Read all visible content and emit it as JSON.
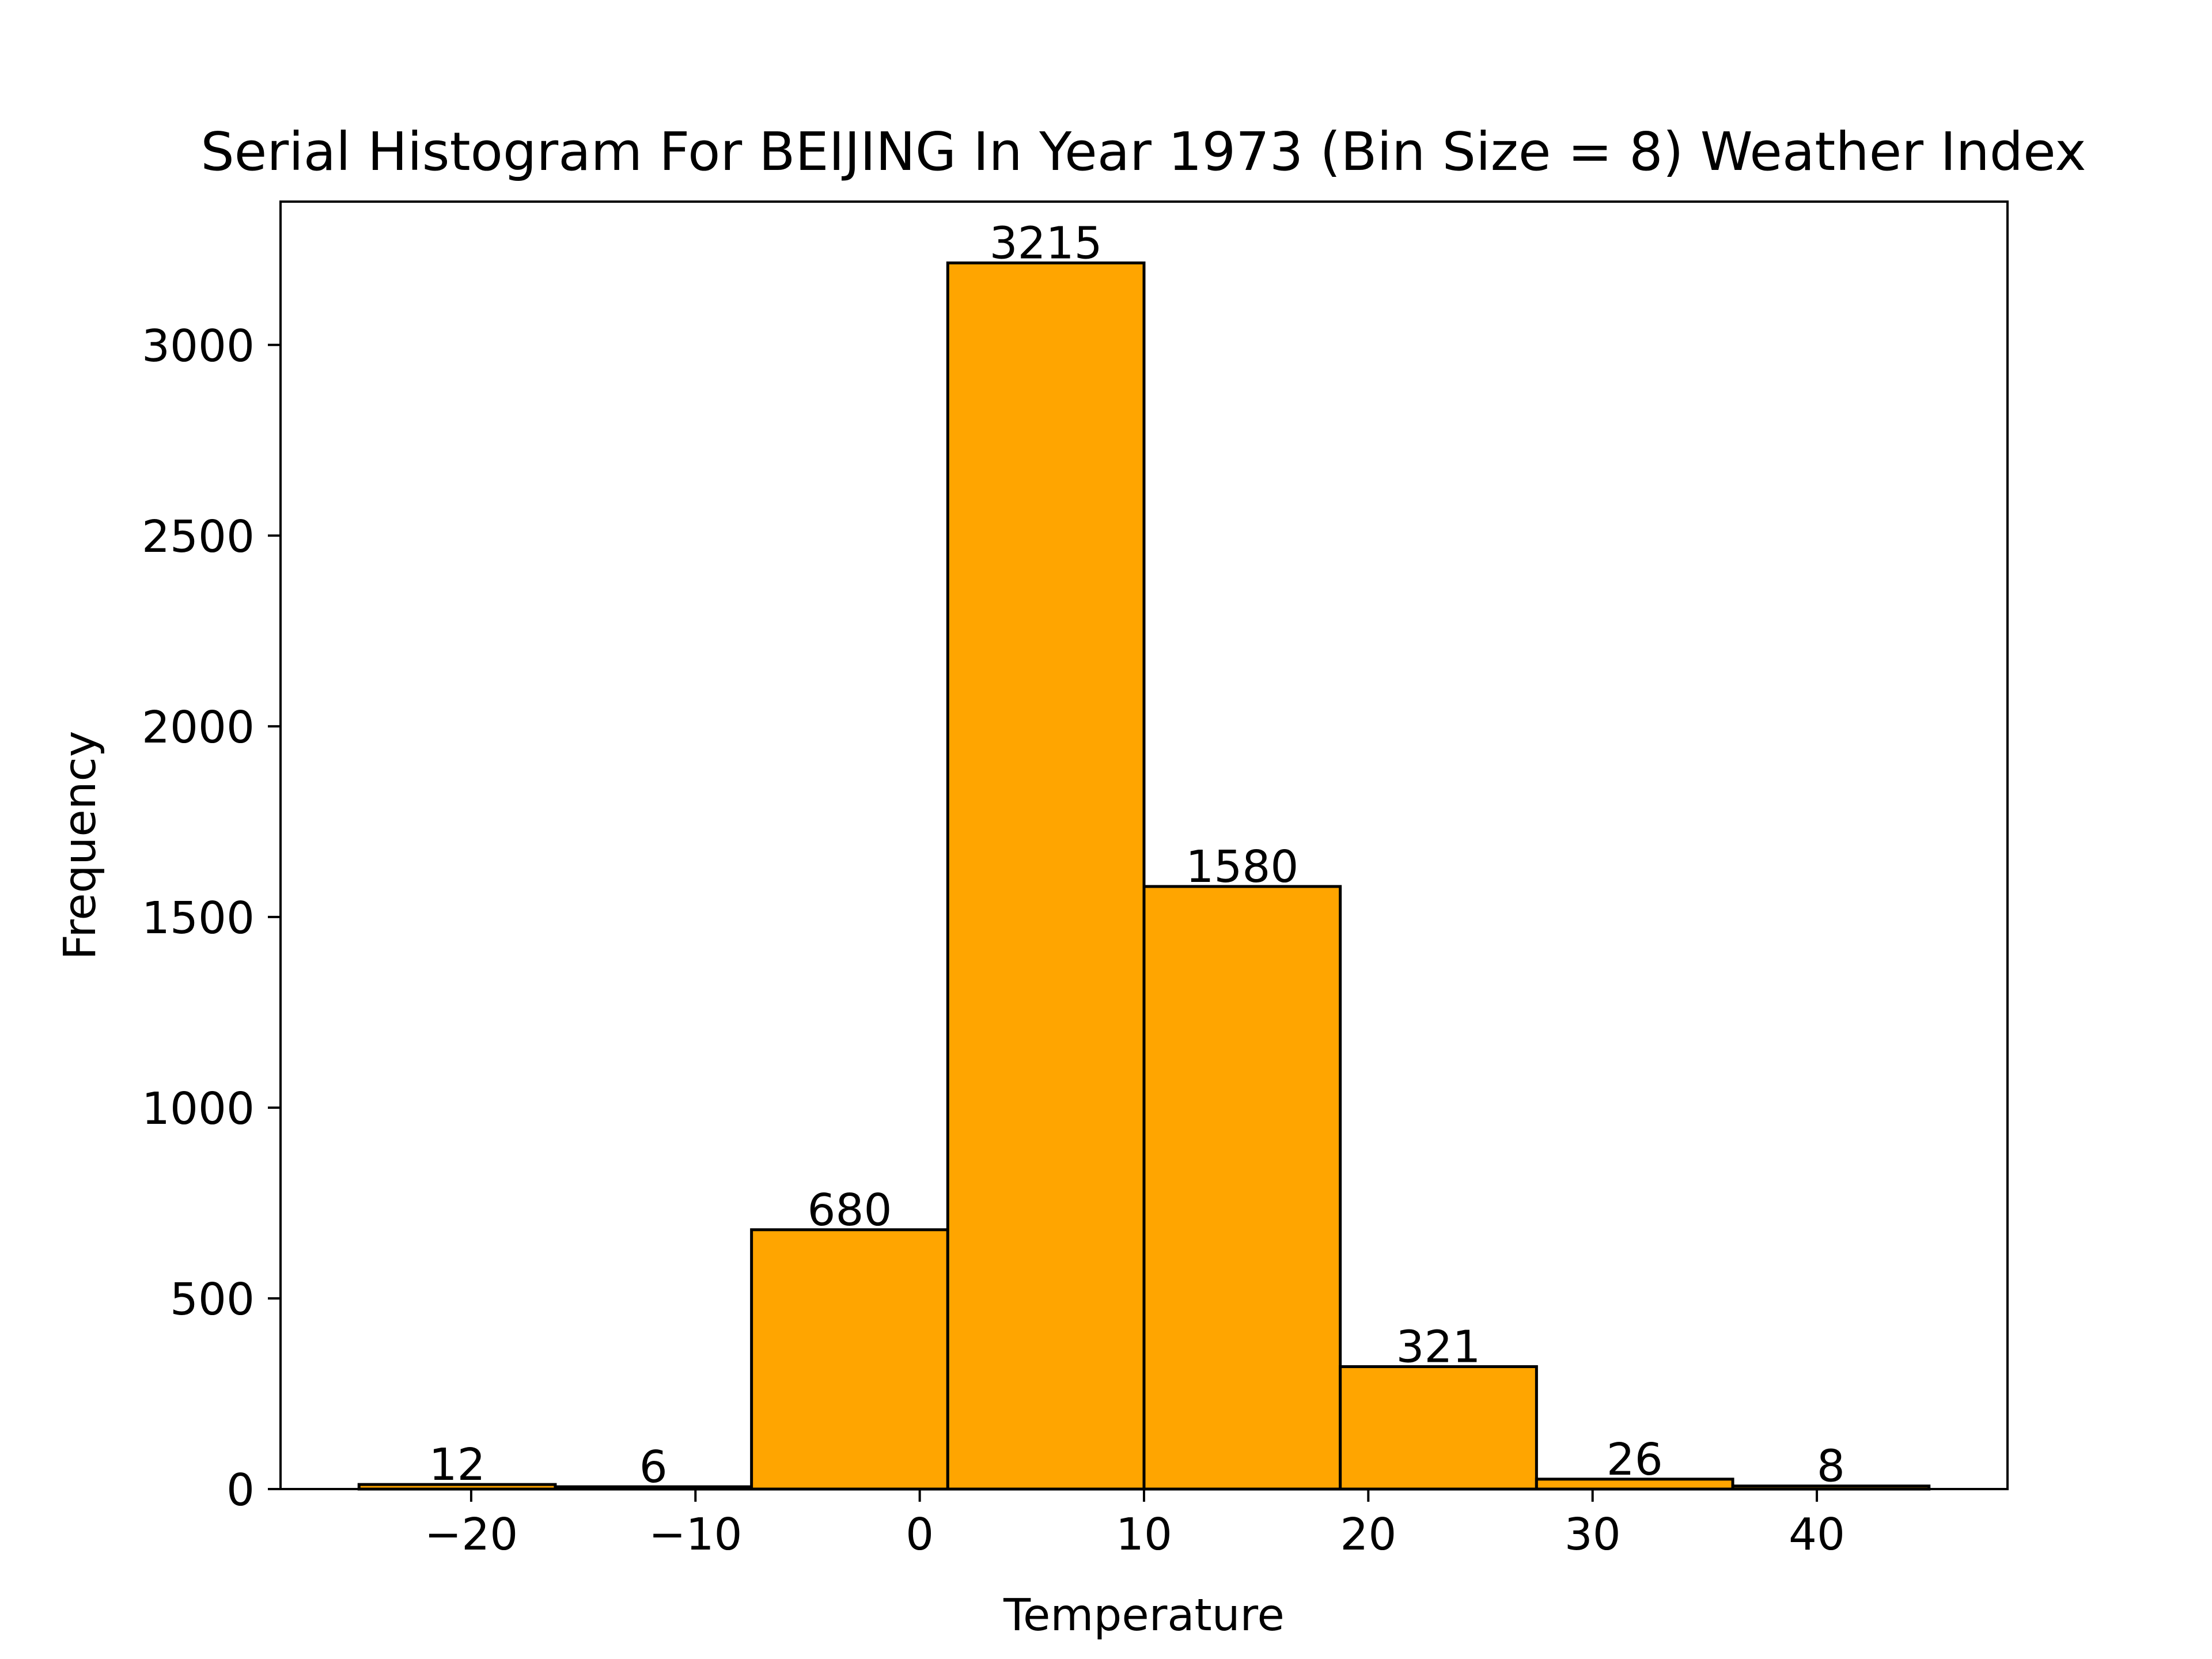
{
  "chart_data": {
    "type": "bar",
    "title": "Serial Histogram For BEIJING In Year 1973 (Bin Size = 8) Weather Index",
    "xlabel": "Temperature",
    "ylabel": "Frequency",
    "bin_edges": [
      -25.0,
      -16.25,
      -7.5,
      1.25,
      10.0,
      18.75,
      27.5,
      36.25,
      45.0
    ],
    "values": [
      12,
      6,
      680,
      3215,
      1580,
      321,
      26,
      8
    ],
    "value_labels": [
      "12",
      "6",
      "680",
      "3215",
      "1580",
      "321",
      "26",
      "8"
    ],
    "xlim": [
      -28.5,
      48.5
    ],
    "ylim": [
      0,
      3375.75
    ],
    "x_ticks": [
      -20,
      -10,
      0,
      10,
      20,
      30,
      40
    ],
    "x_tick_labels": [
      "−20",
      "−10",
      "0",
      "10",
      "20",
      "30",
      "40"
    ],
    "y_ticks": [
      0,
      500,
      1000,
      1500,
      2000,
      2500,
      3000
    ],
    "y_tick_labels": [
      "0",
      "500",
      "1000",
      "1500",
      "2000",
      "2500",
      "3000"
    ],
    "grid": false,
    "bar_color": "#FFA500",
    "edge_color": "#000000"
  }
}
